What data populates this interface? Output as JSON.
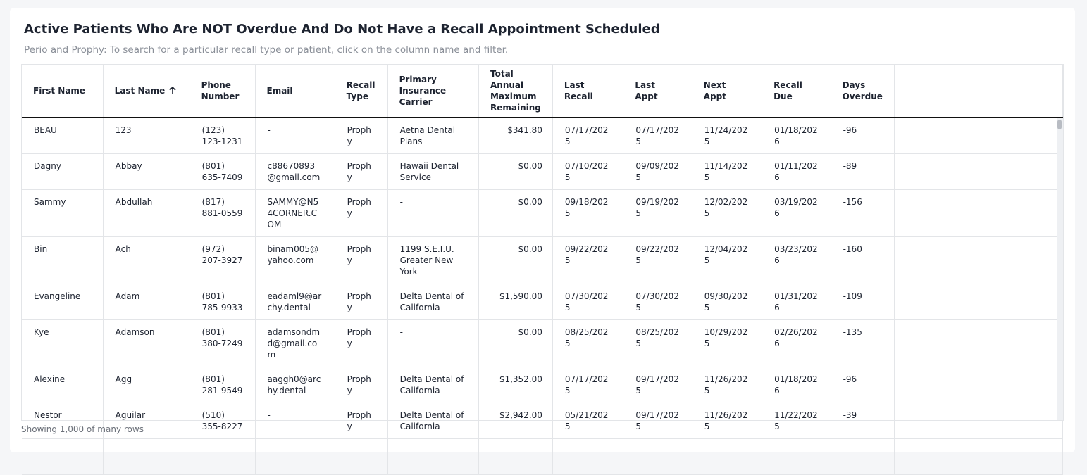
{
  "header": {
    "title": "Active Patients Who Are NOT Overdue And Do Not Have a Recall Appointment Scheduled",
    "subtitle": "Perio and Prophy: To search for a particular recall type or patient, click on the column name and filter."
  },
  "table": {
    "columns": [
      "First Name",
      "Last Name",
      "Phone Number",
      "Email",
      "Recall Type",
      "Primary Insurance Carrier",
      "Total Annual Maximum Remaining",
      "Last Recall",
      "Last Appt",
      "Next Appt",
      "Recall Due",
      "Days Overdue"
    ],
    "rows": [
      [
        "BEAU",
        "123",
        "(123) 123-1231",
        "-",
        "Prophy",
        "Aetna Dental Plans",
        "$341.80",
        "07/17/2025",
        "07/17/2025",
        "11/24/2025",
        "01/18/2026",
        "-96"
      ],
      [
        "Dagny",
        "Abbay",
        "(801) 635-7409",
        "c88670893@gmail.com",
        "Prophy",
        "Hawaii Dental Service",
        "$0.00",
        "07/10/2025",
        "09/09/2025",
        "11/14/2025",
        "01/11/2026",
        "-89"
      ],
      [
        "Sammy",
        "Abdullah",
        "(817) 881-0559",
        "SAMMY@N54CORNER.COM",
        "Prophy",
        "-",
        "$0.00",
        "09/18/2025",
        "09/19/2025",
        "12/02/2025",
        "03/19/2026",
        "-156"
      ],
      [
        "Bin",
        "Ach",
        "(972) 207-3927",
        "binam005@yahoo.com",
        "Prophy",
        "1199 S.E.I.U. Greater New York",
        "$0.00",
        "09/22/2025",
        "09/22/2025",
        "12/04/2025",
        "03/23/2026",
        "-160"
      ],
      [
        "Evangeline",
        "Adam",
        "(801) 785-9933",
        "eadaml9@archy.dental",
        "Prophy",
        "Delta Dental of California",
        "$1,590.00",
        "07/30/2025",
        "07/30/2025",
        "09/30/2025",
        "01/31/2026",
        "-109"
      ],
      [
        "Kye",
        "Adamson",
        "(801) 380-7249",
        "adamsondmd@gmail.com",
        "Prophy",
        "-",
        "$0.00",
        "08/25/2025",
        "08/25/2025",
        "10/29/2025",
        "02/26/2026",
        "-135"
      ],
      [
        "Alexine",
        "Agg",
        "(801) 281-9549",
        "aaggh0@archy.dental",
        "Prophy",
        "Delta Dental of California",
        "$1,352.00",
        "07/17/2025",
        "09/17/2025",
        "11/26/2025",
        "01/18/2026",
        "-96"
      ],
      [
        "Nestor",
        "Aguilar",
        "(510) 355-8227",
        "-",
        "Prophy",
        "Delta Dental of California",
        "$2,942.00",
        "05/21/2025",
        "09/17/2025",
        "11/26/2025",
        "11/22/2025",
        "-39"
      ]
    ]
  },
  "footer": "Showing 1,000 of many rows"
}
